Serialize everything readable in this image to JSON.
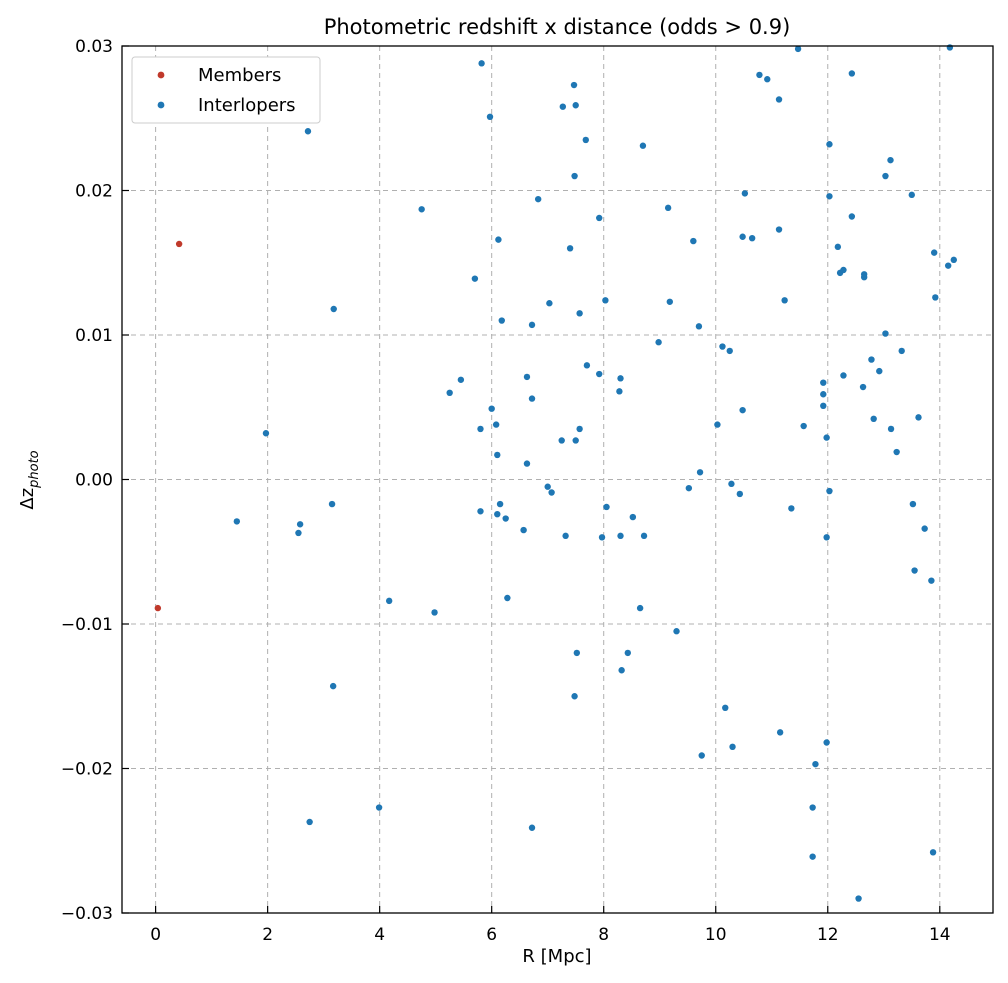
{
  "chart_data": {
    "type": "scatter",
    "title": "Photometric redshift x distance (odds > 0.9)",
    "xlabel": "R [Mpc]",
    "ylabel_base": "Δz",
    "ylabel_sub": "photo",
    "xlim": [
      -0.6,
      14.95
    ],
    "ylim": [
      -0.03,
      0.03
    ],
    "xticks": [
      0,
      2,
      4,
      6,
      8,
      10,
      12,
      14
    ],
    "yticks": [
      -0.03,
      -0.02,
      -0.01,
      0.0,
      0.01,
      0.02,
      0.03
    ],
    "xtick_labels": [
      "0",
      "2",
      "4",
      "6",
      "8",
      "10",
      "12",
      "14"
    ],
    "ytick_labels": [
      "−0.03",
      "−0.02",
      "−0.01",
      "0.00",
      "0.01",
      "0.02",
      "0.03"
    ],
    "grid": true,
    "legend_position": "top-left",
    "series": [
      {
        "name": "Members",
        "color": "#c0392b",
        "points": [
          [
            0.42,
            0.0163
          ],
          [
            0.04,
            -0.0089
          ]
        ]
      },
      {
        "name": "Interlopers",
        "color": "#1f77b4",
        "points": [
          [
            1.45,
            -0.0029
          ],
          [
            1.97,
            0.0032
          ],
          [
            2.55,
            -0.0037
          ],
          [
            2.58,
            -0.0031
          ],
          [
            2.72,
            0.0241
          ],
          [
            2.75,
            -0.0237
          ],
          [
            3.15,
            -0.0017
          ],
          [
            3.18,
            0.0118
          ],
          [
            3.17,
            -0.0143
          ],
          [
            3.99,
            -0.0227
          ],
          [
            4.17,
            -0.0084
          ],
          [
            4.75,
            0.0187
          ],
          [
            4.98,
            -0.0092
          ],
          [
            5.25,
            0.006
          ],
          [
            5.45,
            0.0069
          ],
          [
            5.7,
            0.0139
          ],
          [
            5.82,
            0.0288
          ],
          [
            5.8,
            0.0035
          ],
          [
            5.8,
            -0.0022
          ],
          [
            5.97,
            0.0251
          ],
          [
            6.0,
            0.0049
          ],
          [
            6.08,
            0.0038
          ],
          [
            6.1,
            0.0017
          ],
          [
            6.1,
            -0.0024
          ],
          [
            6.12,
            0.0166
          ],
          [
            6.15,
            -0.0017
          ],
          [
            6.18,
            0.011
          ],
          [
            6.25,
            -0.0027
          ],
          [
            6.28,
            -0.0082
          ],
          [
            6.57,
            -0.0035
          ],
          [
            6.63,
            0.0071
          ],
          [
            6.63,
            0.0011
          ],
          [
            6.72,
            0.0107
          ],
          [
            6.72,
            0.0056
          ],
          [
            6.72,
            -0.0241
          ],
          [
            6.83,
            0.0194
          ],
          [
            7.0,
            -0.0005
          ],
          [
            7.03,
            0.0122
          ],
          [
            7.07,
            -0.0009
          ],
          [
            7.25,
            0.0027
          ],
          [
            7.27,
            0.0258
          ],
          [
            7.32,
            -0.0039
          ],
          [
            7.4,
            0.016
          ],
          [
            7.47,
            0.0273
          ],
          [
            7.48,
            0.021
          ],
          [
            7.5,
            0.0259
          ],
          [
            7.5,
            0.0027
          ],
          [
            7.48,
            -0.015
          ],
          [
            7.52,
            -0.012
          ],
          [
            7.57,
            0.0115
          ],
          [
            7.57,
            0.0035
          ],
          [
            7.68,
            0.0235
          ],
          [
            7.7,
            0.0079
          ],
          [
            7.92,
            0.0181
          ],
          [
            7.92,
            0.0073
          ],
          [
            7.97,
            -0.004
          ],
          [
            8.03,
            0.0124
          ],
          [
            8.05,
            -0.0019
          ],
          [
            8.28,
            0.0061
          ],
          [
            8.3,
            0.007
          ],
          [
            8.3,
            -0.0039
          ],
          [
            8.32,
            -0.0132
          ],
          [
            8.43,
            -0.012
          ],
          [
            8.52,
            -0.0026
          ],
          [
            8.65,
            -0.0089
          ],
          [
            8.7,
            0.0231
          ],
          [
            8.72,
            -0.0039
          ],
          [
            8.98,
            0.0095
          ],
          [
            9.15,
            0.0188
          ],
          [
            9.18,
            0.0123
          ],
          [
            9.3,
            -0.0105
          ],
          [
            9.52,
            -0.0006
          ],
          [
            9.6,
            0.0165
          ],
          [
            9.7,
            0.0106
          ],
          [
            9.72,
            0.0005
          ],
          [
            9.75,
            -0.0191
          ],
          [
            10.03,
            0.0038
          ],
          [
            10.12,
            0.0092
          ],
          [
            10.17,
            -0.0158
          ],
          [
            10.25,
            0.0089
          ],
          [
            10.28,
            -0.0003
          ],
          [
            10.3,
            -0.0185
          ],
          [
            10.43,
            -0.001
          ],
          [
            10.48,
            0.0048
          ],
          [
            10.48,
            0.0168
          ],
          [
            10.52,
            0.0198
          ],
          [
            10.65,
            0.0167
          ],
          [
            10.78,
            0.028
          ],
          [
            10.92,
            0.0277
          ],
          [
            11.13,
            0.0263
          ],
          [
            11.13,
            0.0173
          ],
          [
            11.15,
            -0.0175
          ],
          [
            11.23,
            0.0124
          ],
          [
            11.35,
            -0.002
          ],
          [
            11.47,
            0.0298
          ],
          [
            11.57,
            0.0037
          ],
          [
            11.73,
            -0.0227
          ],
          [
            11.73,
            -0.0261
          ],
          [
            11.78,
            -0.0197
          ],
          [
            11.92,
            0.0067
          ],
          [
            11.92,
            0.0059
          ],
          [
            11.92,
            0.0051
          ],
          [
            11.98,
            0.0029
          ],
          [
            11.98,
            -0.004
          ],
          [
            11.98,
            -0.0182
          ],
          [
            12.03,
            0.0232
          ],
          [
            12.03,
            0.0196
          ],
          [
            12.03,
            -0.0008
          ],
          [
            12.18,
            0.0161
          ],
          [
            12.22,
            0.0143
          ],
          [
            12.28,
            0.0145
          ],
          [
            12.28,
            0.0072
          ],
          [
            12.43,
            0.0281
          ],
          [
            12.43,
            0.0182
          ],
          [
            12.55,
            -0.029
          ],
          [
            12.63,
            0.0064
          ],
          [
            12.65,
            0.0142
          ],
          [
            12.65,
            0.014
          ],
          [
            12.78,
            0.0083
          ],
          [
            12.82,
            0.0042
          ],
          [
            12.92,
            0.0075
          ],
          [
            13.03,
            0.021
          ],
          [
            13.03,
            0.0101
          ],
          [
            13.12,
            0.0221
          ],
          [
            13.13,
            0.0035
          ],
          [
            13.23,
            0.0019
          ],
          [
            13.32,
            0.0089
          ],
          [
            13.5,
            0.0197
          ],
          [
            13.52,
            -0.0017
          ],
          [
            13.55,
            -0.0063
          ],
          [
            13.62,
            0.0043
          ],
          [
            13.73,
            -0.0034
          ],
          [
            13.85,
            -0.007
          ],
          [
            13.88,
            -0.0258
          ],
          [
            13.9,
            0.0157
          ],
          [
            13.92,
            0.0126
          ],
          [
            14.15,
            0.0148
          ],
          [
            14.18,
            0.0299
          ],
          [
            14.25,
            0.0152
          ]
        ]
      }
    ]
  }
}
